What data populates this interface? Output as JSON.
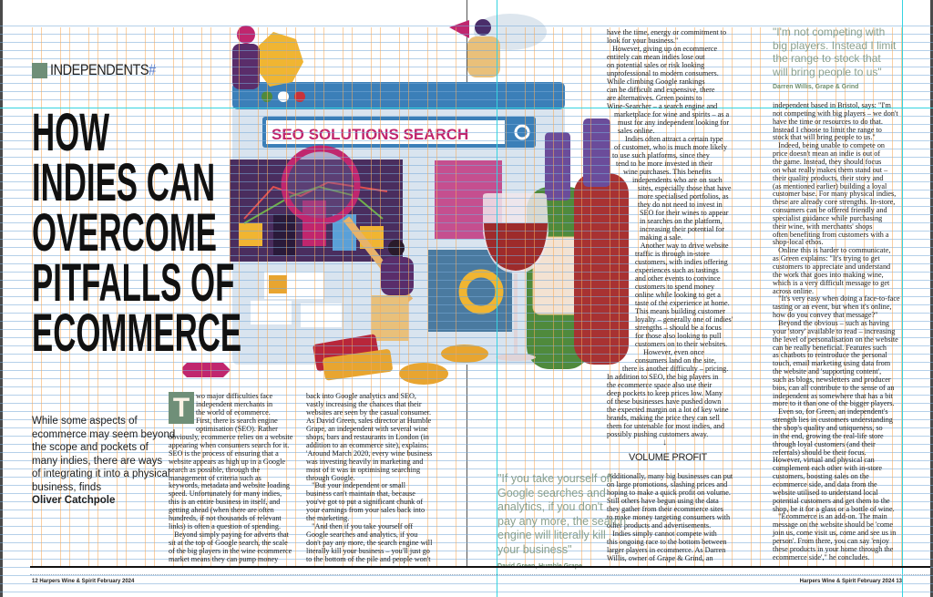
{
  "section_label": "INDEPENDENTS",
  "headline": [
    "HOW",
    "INDIES CAN",
    "OVERCOME",
    "PITFALLS OF",
    "ECOMMERCE"
  ],
  "intro": {
    "lines": [
      "While some aspects of",
      "ecommerce may seem beyond",
      "the scope and pockets of",
      "many indies, there are ways",
      "of integrating it into a physical",
      "business, finds"
    ],
    "byline": "Oliver Catchpole"
  },
  "illustration": {
    "search_text": "SEO SOLUTIONS SEARCH"
  },
  "dropcap": "T",
  "columns": {
    "col1": [
      "wo major difficulties face",
      "independent merchants in",
      "the world of ecommerce.",
      "First, there is search engine",
      "optimisation (SEO). Rather",
      "obviously, ecommerce relies on a website",
      "appearing when consumers search for it.",
      "SEO is the process of ensuring that a",
      "website appears as high up in a Google",
      "search as possible, through the",
      "management of criteria such as",
      "keywords, metadata and website loading",
      "speed. Unfortunately for many indies,",
      "this is an entire business in itself, and",
      "getting ahead (when there are often",
      "hundreds, if not thousands of relevant",
      "links) is often a question of spending.",
      "   Beyond simply paying for adverts that",
      "sit at the top of Google search, the scale",
      "of the big players in the wine ecommerce",
      "market means they can pump money"
    ],
    "col2": [
      "back into Google analytics and SEO,",
      "vastly increasing the chances that their",
      "websites are seen by the casual consumer.",
      "As David Green, sales director at Humble",
      "Grape, an independent with several wine",
      "shops, bars and restaurants in London (in",
      "addition to an ecommerce site), explains:",
      "'Around March 2020, every wine business",
      "was investing heavily in marketing and",
      "most of it was in optimising searching",
      "through Google.",
      "   \"But your independent or small",
      "business can't maintain that, because",
      "you've got to put a significant chunk of",
      "your earnings from your sales back into",
      "the marketing.",
      "   \"And then if you take yourself off",
      "Google searches and analytics, if you",
      "don't pay any more, the search engine will",
      "literally kill your business – you'll just go",
      "to the bottom of the pile and people won't"
    ],
    "col3": [
      "have the time, energy or commitment to",
      "look for your business.\"",
      "   However, giving up on ecommerce",
      "entirely can mean indies lose out",
      "on potential sales or risk looking",
      "unprofessional to modern consumers.",
      "While climbing Google rankings",
      "can be difficult and expensive, there",
      "are alternatives. Green points to",
      "Wine-Searcher – a search engine and",
      "marketplace for wine and spirits – as a",
      "must for any independent looking for",
      "sales online.",
      "Indies often attract a certain type",
      "of customer, who is much more likely",
      "to use such platforms, since they",
      "tend to be more invested in their",
      "wine purchases. This benefits",
      "independents who are on such",
      "sites, especially those that have",
      "more specialised portfolios, as",
      "they do not need to invest in",
      "SEO for their wines to appear",
      "in searches on the platform,",
      "increasing their potential for",
      "making a sale.",
      "   Another way to drive website",
      "traffic is through in-store",
      "customers, with indies offering",
      "experiences such as tastings",
      "and other events to convince",
      "customers to spend money",
      "online while looking to get a",
      "taste of the experience at home.",
      "This means building customer",
      "loyalty – generally one of indies'",
      "strengths – should be a focus",
      "for those also looking to pull",
      "customers on to their websites.",
      "   However, even once",
      "consumers land on the site,",
      "there is another difficulty – pricing.",
      "In addition to SEO, the big players in",
      "the ecommerce space also use their",
      "deep pockets to keep prices low. Many",
      "of these businesses have pushed down",
      "the expected margin on a lot of key wine",
      "brands, making the price they can sell",
      "them for untenable for most indies, and",
      "possibly pushing customers away."
    ],
    "col3b": [
      "Additionally, many big businesses can put",
      "on large promotions, slashing prices and",
      "hoping to make a quick profit on volume.",
      "Still others have begun using the data",
      "they gather from their ecommerce sites",
      "to make money targeting consumers with",
      "other products and advertisements.",
      "   Indies simply cannot compete with",
      "this ongoing race to the bottom between",
      "larger players in ecommerce. As Darren",
      "Willis, owner of Grape & Grind, an"
    ],
    "col4": [
      "independent based in Bristol, says: \"I'm",
      "not competing with big players – we don't",
      "have the time or resources to do that.",
      "Instead I choose to limit the range to",
      "stock that will bring people to us.\"",
      "   Indeed, being unable to compete on",
      "price doesn't mean an indie is out of",
      "the game. Instead, they should focus",
      "on what really makes them stand out –",
      "their quality products, their story and",
      "(as mentioned earlier) building a loyal",
      "customer base. For many physical indies,",
      "these are already core strengths. In-store,",
      "consumers can be offered friendly and",
      "specialist guidance while purchasing",
      "their wine, with merchants' shops",
      "often benefiting from customers with a",
      "shop-local ethos.",
      "   Online this is harder to communicate,",
      "as Green explains: \"It's trying to get",
      "customers to appreciate and understand",
      "the work that goes into making wine,",
      "which is a very difficult message to get",
      "across online.",
      "   \"It's very easy when doing a face-to-face",
      "tasting or an event, but when it's online,",
      "how do you convey that message?\"",
      "   Beyond the obvious – such as having",
      "your 'story' available to read – increasing",
      "the level of personalisation on the website",
      "can be really beneficial. Features such",
      "as chatbots to reintroduce the personal",
      "touch, email marketing using data from",
      "the website and 'supporting content',",
      "such as blogs, newsletters and producer",
      "bios, can all contribute to the sense of an",
      "independent as somewhere that has a bit",
      "more to it than one of the bigger players.",
      "   Even so, for Green, an independent's",
      "strength lies in customers understanding",
      "the shop's quality and uniqueness, so",
      "in the end, growing the real-life store",
      "through loyal customers (and their",
      "referrals) should be their focus.",
      "However, virtual and physical can",
      "complement each other with in-store",
      "customers, boosting sales on the",
      "ecommerce side, and data from the",
      "website utilised to understand local",
      "potential customers and get them to the",
      "shop, be it for a glass or a bottle of wine.",
      "   \"Ecommerce is an add-on. The main",
      "message on the website should be 'come",
      "join us, come visit us, come and see us in",
      "person'. From there, you can say 'enjoy",
      "these products in your home through the",
      "ecommerce side',\" he concludes."
    ]
  },
  "subhead": "VOLUME PROFIT",
  "pullquote_1": {
    "lines": [
      "\"If you take yourself off",
      "Google searches and",
      "analytics, if you don't",
      "pay any more, the search",
      "engine will literally kill",
      "your business\""
    ],
    "attribution": "David Green, Humble Grape"
  },
  "pullquote_2": {
    "lines": [
      "\"I'm not competing with",
      "big players. Instead I limit",
      "the range to stock that",
      "will bring people to us\""
    ],
    "attribution": "Darren Willis, Grape & Grind"
  },
  "footer": {
    "left": "12  Harpers Wine & Spirit  February 2024",
    "right": "Harpers Wine & Spirit  February 2024  13"
  },
  "colors": {
    "accent_green": "#6f8f78",
    "quote_green": "#8aa08e",
    "seo_magenta": "#c0266e",
    "browser_blue": "#3b7fb8"
  }
}
